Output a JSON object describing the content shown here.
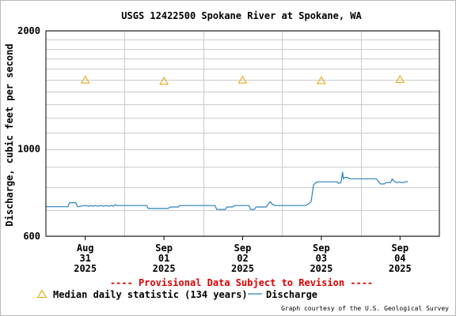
{
  "chart_data": {
    "type": "line",
    "title": "USGS 12422500 Spokane River at Spokane, WA",
    "ylabel": "Discharge, cubic feet per second",
    "yscale": "log",
    "ylim": [
      600,
      2000
    ],
    "yticks": [
      {
        "value": 2000,
        "label": "2000"
      },
      {
        "value": 1000,
        "label": "1000"
      },
      {
        "value": 600,
        "label": "600"
      }
    ],
    "y_minor_grid": [
      700,
      800,
      900,
      1100,
      1200,
      1300,
      1400,
      1500,
      1600,
      1700,
      1800,
      1900
    ],
    "x_unit": "day since Aug 31 2025 00:00",
    "xlim": [
      -0.5,
      4.5
    ],
    "xticks": [
      {
        "value": 0,
        "month": "Aug",
        "day": "31",
        "year": "2025"
      },
      {
        "value": 1,
        "month": "Sep",
        "day": "01",
        "year": "2025"
      },
      {
        "value": 2,
        "month": "Sep",
        "day": "02",
        "year": "2025"
      },
      {
        "value": 3,
        "month": "Sep",
        "day": "03",
        "year": "2025"
      },
      {
        "value": 4,
        "month": "Sep",
        "day": "04",
        "year": "2025"
      }
    ],
    "x_major_grid": [
      0.5,
      1.5,
      2.5,
      3.5
    ],
    "series": [
      {
        "name": "Median daily statistic (134 years)",
        "marker": "triangle",
        "color": "#e8a000",
        "x": [
          0,
          1,
          2,
          3,
          4
        ],
        "y": [
          1500,
          1490,
          1500,
          1495,
          1505
        ]
      },
      {
        "name": "Discharge",
        "marker": "line",
        "color": "#2a80b9",
        "x": [
          -0.5,
          -0.22,
          -0.2,
          -0.12,
          -0.1,
          0,
          0.05,
          0.07,
          0.1,
          0.13,
          0.16,
          0.2,
          0.23,
          0.26,
          0.3,
          0.33,
          0.36,
          0.38,
          0.4,
          0.5,
          0.78,
          0.8,
          1.05,
          1.08,
          1.18,
          1.2,
          1.65,
          1.67,
          1.78,
          1.8,
          1.87,
          1.9,
          2.08,
          2.1,
          2.15,
          2.17,
          2.3,
          2.32,
          2.35,
          2.38,
          2.42,
          2.8,
          2.82,
          2.85,
          2.87,
          2.9,
          2.93,
          2.96,
          3.2,
          3.22,
          3.25,
          3.27,
          3.28,
          3.3,
          3.33,
          3.36,
          3.4,
          3.42,
          3.7,
          3.75,
          3.8,
          3.82,
          3.88,
          3.9,
          3.93,
          3.95,
          3.97,
          3.99,
          4.01,
          4.03,
          4.05,
          4.07,
          4.1
        ],
        "y": [
          713,
          713,
          730,
          730,
          713,
          718,
          715,
          718,
          715,
          718,
          715,
          718,
          715,
          718,
          715,
          718,
          715,
          722,
          718,
          718,
          718,
          706,
          706,
          712,
          712,
          718,
          718,
          702,
          702,
          712,
          712,
          718,
          718,
          702,
          702,
          712,
          712,
          722,
          735,
          722,
          718,
          718,
          722,
          728,
          735,
          810,
          822,
          825,
          825,
          818,
          822,
          874,
          840,
          847,
          847,
          840,
          840,
          840,
          840,
          815,
          815,
          822,
          822,
          840,
          826,
          822,
          822,
          826,
          822,
          822,
          822,
          826,
          826
        ]
      }
    ],
    "annotation": "---- Provisional Data Subject to Revision ----",
    "credit": "Graph courtesy of the U.S. Geological Survey",
    "colors": {
      "grid": "#cccccc",
      "frame": "#000000",
      "annotation": "#dd0000"
    }
  }
}
